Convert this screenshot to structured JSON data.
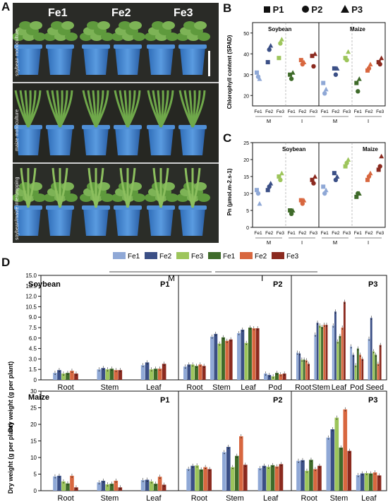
{
  "panel_labels": {
    "a": "A",
    "b": "B",
    "c": "C",
    "d": "D"
  },
  "photo": {
    "columns": [
      "Fe1",
      "Fe2",
      "Fe3"
    ],
    "rows": [
      "soybean monoculture",
      "maize monoculture",
      "soybean/maize intercropping"
    ]
  },
  "markers": {
    "p1": "P1",
    "p2": "P2",
    "p3": "P3"
  },
  "panel_b": {
    "ylabel": "Chlorophyll content (SPAD)",
    "crops": [
      "Soybean",
      "Maize"
    ],
    "ticks": [
      "20",
      "30",
      "40",
      "50"
    ],
    "xticks": [
      "Fe1",
      "Fe2",
      "Fe3",
      "Fe1",
      "Fe2",
      "Fe3",
      "Fe1",
      "Fe2",
      "Fe3",
      "Fe1",
      "Fe2",
      "Fe3"
    ],
    "groups": [
      "M",
      "I",
      "M",
      "I"
    ]
  },
  "panel_c": {
    "ylabel": "Pn (µmol.m-2.s-1)",
    "crops": [
      "Soybean",
      "Maize"
    ],
    "ticks": [
      "0",
      "5",
      "10",
      "15",
      "20",
      "25"
    ],
    "xticks": [
      "Fe1",
      "Fe2",
      "Fe3",
      "Fe1",
      "Fe2",
      "Fe3",
      "Fe1",
      "Fe2",
      "Fe3",
      "Fe1",
      "Fe2",
      "Fe3"
    ],
    "groups": [
      "M",
      "I",
      "M",
      "I"
    ]
  },
  "panel_d": {
    "legend": [
      "Fe1",
      "Fe2",
      "Fe3",
      "Fe1",
      "Fe2",
      "Fe3"
    ],
    "legend_groups": [
      "M",
      "I"
    ],
    "ylabel": "Dry weight (g per plant)",
    "soybean_label": "Soybean",
    "maize_label": "Maize",
    "soy_ticks": [
      "0",
      "1.5",
      "3.0",
      "4.5",
      "6.0",
      "7.5",
      "9.0",
      "10.5",
      "12.0",
      "13.5",
      "15.0"
    ],
    "maize_ticks": [
      "0",
      "5",
      "10",
      "15",
      "20",
      "25",
      "30"
    ],
    "periods": [
      "P1",
      "P2",
      "P3"
    ],
    "soy_organs": [
      [
        "Root",
        "Stem",
        "Leaf"
      ],
      [
        "Root",
        "Stem",
        "Leaf",
        "Pod"
      ],
      [
        "Root",
        "Stem",
        "Leaf",
        "Pod",
        "Seed"
      ]
    ],
    "maize_organs": [
      [
        "Root",
        "Stem",
        "Leaf"
      ],
      [
        "Root",
        "Stem",
        "Leaf"
      ],
      [
        "Root",
        "Stem",
        "Leaf"
      ]
    ]
  },
  "colors": {
    "m_fe1": "#8fa8d6",
    "m_fe2": "#3b4f86",
    "m_fe3": "#9dc55b",
    "i_fe1": "#3f6b2a",
    "i_fe2": "#d8673f",
    "i_fe3": "#8b2a1f"
  },
  "chart_data": [
    {
      "type": "scatter",
      "ylabel": "Chlorophyll content (SPAD)",
      "ylim": [
        15,
        55
      ],
      "series": [
        {
          "name": "Soybean M P1",
          "values": [
            31,
            36,
            38
          ]
        },
        {
          "name": "Soybean M P2",
          "values": [
            29,
            42,
            45
          ]
        },
        {
          "name": "Soybean M P3",
          "values": [
            28,
            44,
            47
          ]
        },
        {
          "name": "Soybean I P1",
          "values": [
            30,
            37,
            39
          ]
        },
        {
          "name": "Soybean I P2",
          "values": [
            28,
            35,
            34
          ]
        },
        {
          "name": "Soybean I P3",
          "values": [
            31,
            36,
            40
          ]
        },
        {
          "name": "Maize M P1",
          "values": [
            26,
            33,
            38
          ]
        },
        {
          "name": "Maize M P2",
          "values": [
            21,
            30,
            37
          ]
        },
        {
          "name": "Maize M P3",
          "values": [
            23,
            33,
            41
          ]
        },
        {
          "name": "Maize I P1",
          "values": [
            26,
            32,
            36
          ]
        },
        {
          "name": "Maize I P2",
          "values": [
            22,
            33,
            35
          ]
        },
        {
          "name": "Maize I P3",
          "values": [
            28,
            35,
            38
          ]
        }
      ]
    },
    {
      "type": "scatter",
      "ylabel": "Pn (µmol.m-2.s-1)",
      "ylim": [
        0,
        25
      ],
      "series": [
        {
          "name": "Soybean M P1",
          "values": [
            11,
            11,
            15
          ]
        },
        {
          "name": "Soybean M P2",
          "values": [
            10,
            12,
            14
          ]
        },
        {
          "name": "Soybean M P3",
          "values": [
            7,
            13,
            16
          ]
        },
        {
          "name": "Soybean I P1",
          "values": [
            5,
            8,
            14
          ]
        },
        {
          "name": "Soybean I P2",
          "values": [
            4,
            7,
            13
          ]
        },
        {
          "name": "Soybean I P3",
          "values": [
            5,
            8,
            15
          ]
        },
        {
          "name": "Maize M P1",
          "values": [
            12,
            16,
            18
          ]
        },
        {
          "name": "Maize M P2",
          "values": [
            10,
            14,
            19
          ]
        },
        {
          "name": "Maize M P3",
          "values": [
            11,
            15,
            20
          ]
        },
        {
          "name": "Maize I P1",
          "values": [
            9,
            14,
            17
          ]
        },
        {
          "name": "Maize I P2",
          "values": [
            10,
            15,
            18
          ]
        },
        {
          "name": "Maize I P3",
          "values": [
            10,
            16,
            21
          ]
        }
      ]
    },
    {
      "type": "bar",
      "ylabel": "Dry weight (g per plant)",
      "ylim": [
        0,
        15
      ],
      "series": [
        {
          "name": "Soybean P1",
          "categories": [
            "Root",
            "Stem",
            "Leaf"
          ],
          "values": [
            [
              1.0,
              1.4,
              0.9,
              1.0,
              1.3,
              0.9
            ],
            [
              1.5,
              1.7,
              1.5,
              1.6,
              1.4,
              1.4
            ],
            [
              2.1,
              2.5,
              1.5,
              1.6,
              1.6,
              2.3
            ]
          ]
        },
        {
          "name": "Soybean P2",
          "categories": [
            "Root",
            "Stem",
            "Leaf",
            "Pod"
          ],
          "values": [
            [
              1.9,
              2.2,
              2.2,
              2.0,
              2.2,
              2.0
            ],
            [
              6.2,
              6.6,
              5.2,
              6.1,
              5.6,
              5.8
            ],
            [
              6.7,
              7.2,
              5.3,
              7.5,
              7.4,
              7.4
            ],
            [
              0.9,
              0.7,
              0.5,
              1.0,
              0.8,
              0.9
            ]
          ]
        },
        {
          "name": "Soybean P3",
          "categories": [
            "Root",
            "Stem",
            "Leaf",
            "Pod",
            "Seed"
          ],
          "values": [
            [
              3.9,
              3.8,
              2.9,
              2.9,
              2.8,
              2.3
            ],
            [
              6.5,
              8.2,
              7.8,
              7.6,
              7.9,
              7.9
            ],
            [
              7.8,
              9.8,
              5.5,
              6.3,
              7.5,
              11.2
            ],
            [
              4.8,
              3.6,
              2.1,
              4.5,
              3.6,
              3.0
            ],
            [
              5.9,
              8.9,
              4.1,
              3.6,
              2.3,
              5.0
            ]
          ]
        },
        {
          "name": "Maize P1",
          "categories": [
            "Root",
            "Stem",
            "Leaf"
          ],
          "values": [
            [
              4.3,
              4.5,
              2.8,
              2.2,
              4.5,
              1.0
            ],
            [
              2.5,
              3.0,
              1.9,
              2.1,
              3.0,
              1.0
            ],
            [
              3.2,
              3.3,
              2.8,
              2.1,
              4.2,
              1.8
            ]
          ]
        },
        {
          "name": "Maize P2",
          "categories": [
            "Root",
            "Stem",
            "Leaf"
          ],
          "values": [
            [
              6.6,
              7.5,
              7.6,
              6.4,
              7.1,
              6.5
            ],
            [
              11.6,
              13.2,
              7.1,
              10.5,
              16.4,
              7.8
            ],
            [
              6.8,
              7.5,
              7.2,
              7.7,
              7.3,
              8.0
            ]
          ]
        },
        {
          "name": "Maize P3",
          "categories": [
            "Root",
            "Stem",
            "Leaf"
          ],
          "values": [
            [
              9.0,
              9.2,
              6.0,
              9.3,
              6.5,
              7.5
            ],
            [
              16.0,
              18.5,
              22.0,
              13.0,
              24.5,
              12.0
            ],
            [
              4.7,
              5.2,
              5.3,
              5.2,
              5.5,
              4.6
            ]
          ]
        }
      ]
    }
  ]
}
